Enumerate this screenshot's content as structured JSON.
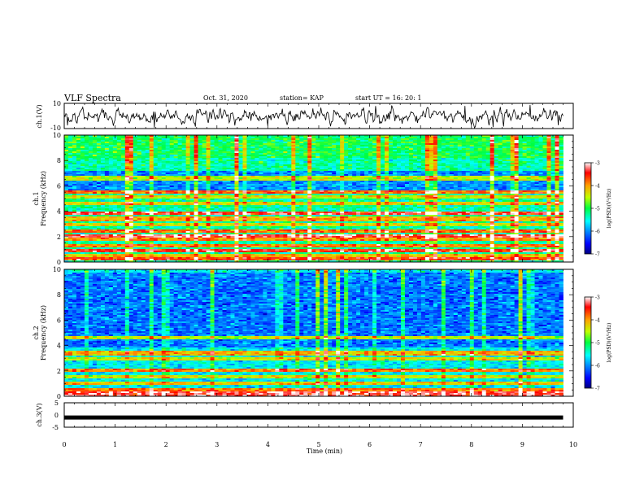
{
  "header": {
    "title": "VLF Spectra",
    "date": "Oct. 31, 2020",
    "station": "station= KAP",
    "start": "start  UT  =   16: 20: 1"
  },
  "chart_data": [
    {
      "type": "line",
      "panel": "ch1_waveform",
      "ylabel": "ch.1(V)",
      "ylim": [
        -10,
        10
      ],
      "yticks": [
        "10",
        "-10"
      ],
      "xlim": [
        0,
        10
      ],
      "trace_range_min": [
        0,
        9.8
      ]
    },
    {
      "type": "heatmap",
      "panel": "ch1_spectrogram",
      "ylabel": [
        "ch.1",
        "Frequency  (kHz)"
      ],
      "ylim_khz": [
        0,
        10
      ],
      "yticks": [
        "0",
        "2",
        "4",
        "6",
        "8",
        "10"
      ],
      "xlim_min": [
        0,
        9.8
      ],
      "colorbar": {
        "label": "log(PSD)(V²/Hz)",
        "range": [
          -7,
          -3
        ],
        "ticks": [
          "-3",
          "-4",
          "-5",
          "-6",
          "-7"
        ]
      },
      "noise_floor_level": -5.3,
      "bands_khz": [
        {
          "f": 0.3,
          "level": -3.6
        },
        {
          "f": 0.55,
          "level": -4.2
        },
        {
          "f": 0.9,
          "level": -3.5
        },
        {
          "f": 1.3,
          "level": -3.9
        },
        {
          "f": 1.8,
          "level": -4.0
        },
        {
          "f": 2.1,
          "level": -3.3
        },
        {
          "f": 2.45,
          "level": -3.8
        },
        {
          "f": 3.0,
          "level": -4.3
        },
        {
          "f": 3.4,
          "level": -4.1
        },
        {
          "f": 3.85,
          "level": -3.4
        },
        {
          "f": 4.6,
          "level": -4.3
        },
        {
          "f": 5.1,
          "level": -4.4
        },
        {
          "f": 5.5,
          "level": -3.8
        },
        {
          "f": 6.6,
          "level": -4.5
        }
      ],
      "low_region": {
        "f_from": 5.6,
        "f_to": 7.2,
        "level": -6.0
      }
    },
    {
      "type": "heatmap",
      "panel": "ch2_spectrogram",
      "ylabel": [
        "ch.2",
        "Frequency  (kHz)"
      ],
      "ylim_khz": [
        0,
        10
      ],
      "yticks": [
        "0",
        "2",
        "4",
        "6",
        "8",
        "10"
      ],
      "xlim_min": [
        0,
        9.8
      ],
      "colorbar": {
        "label": "log(PSD)(V²/Hz)",
        "range": [
          -7,
          -3
        ],
        "ticks": [
          "-3",
          "-4",
          "-5",
          "-6",
          "-7"
        ]
      },
      "noise_floor_level": -5.6,
      "bands_khz": [
        {
          "f": 0.2,
          "level": -3.3
        },
        {
          "f": 0.5,
          "level": -3.9
        },
        {
          "f": 1.0,
          "level": -4.2
        },
        {
          "f": 1.5,
          "level": -4.4
        },
        {
          "f": 2.1,
          "level": -3.9
        },
        {
          "f": 2.9,
          "level": -4.4
        },
        {
          "f": 3.4,
          "level": -4.1
        },
        {
          "f": 4.6,
          "level": -4.5
        }
      ],
      "low_region": {
        "f_from": 3.8,
        "f_to": 9.8,
        "level": -6.1
      }
    },
    {
      "type": "line",
      "panel": "ch3_waveform",
      "ylabel": "ch.3(V)",
      "ylim": [
        -5,
        5
      ],
      "yticks": [
        "5",
        "0",
        "-5"
      ],
      "xlim": [
        0,
        10
      ],
      "trace_level_v": -1.2,
      "trace_range_min": [
        0,
        9.8
      ],
      "xlabel": "Time  (min)",
      "xticks": [
        "0",
        "1",
        "2",
        "3",
        "4",
        "5",
        "6",
        "7",
        "8",
        "9",
        "10"
      ]
    }
  ]
}
